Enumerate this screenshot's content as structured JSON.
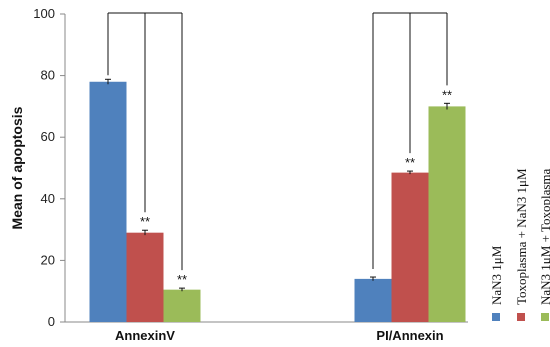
{
  "chart_data": {
    "type": "bar",
    "ylabel": "Mean of apoptosis",
    "xlabel": "",
    "ylim": [
      0,
      100
    ],
    "yticks": [
      0,
      20,
      40,
      60,
      80,
      100
    ],
    "grid": false,
    "legend_position": "right",
    "categories": [
      "AnnexinV",
      "PI/Annexin"
    ],
    "series": [
      {
        "name": "NaN3 1μM",
        "color": "#4f81bd",
        "values": [
          78,
          14
        ],
        "errors": [
          0.8,
          0.6
        ],
        "significance": [
          "",
          ""
        ]
      },
      {
        "name": "Toxoplasma + NaN3 1μM",
        "color": "#c0504d",
        "values": [
          29,
          48.5
        ],
        "errors": [
          0.8,
          0.5
        ],
        "significance": [
          "**",
          "**"
        ]
      },
      {
        "name": "NaN3 1μM + Toxoplasma",
        "color": "#9bbb59",
        "values": [
          10.5,
          70
        ],
        "errors": [
          0.5,
          1.0
        ],
        "significance": [
          "**",
          "**"
        ]
      }
    ]
  }
}
